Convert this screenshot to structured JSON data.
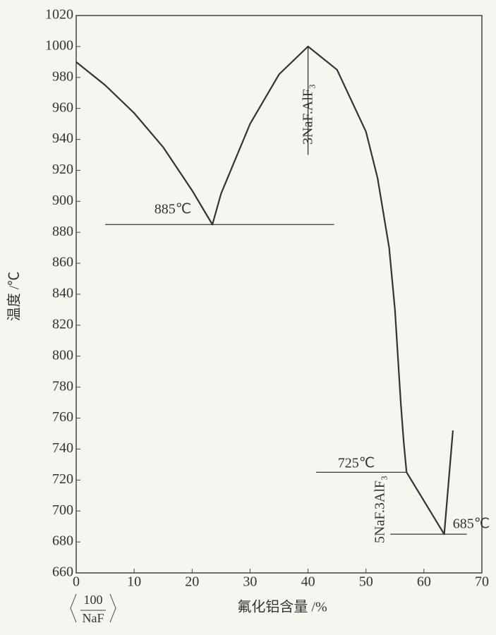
{
  "chart_data": {
    "type": "line",
    "x_label": "氟化铝含量 /%",
    "y_label": "温度 /℃",
    "x": [
      0,
      5,
      10,
      15,
      20,
      23.5,
      25,
      30,
      35,
      40,
      45,
      50,
      52,
      54,
      55,
      55.5,
      56,
      56.5,
      57,
      63.5,
      65
    ],
    "values": [
      990,
      975,
      957,
      935,
      907,
      885,
      905,
      950,
      982,
      1000,
      985,
      945,
      915,
      870,
      830,
      800,
      770,
      745,
      725,
      685,
      752
    ],
    "color": "#333333",
    "segments": [
      {
        "x": [
          5,
          44.5
        ],
        "values": [
          885,
          885
        ]
      },
      {
        "x": [
          40,
          40
        ],
        "values": [
          1000,
          930
        ]
      },
      {
        "x": [
          41.4,
          57
        ],
        "values": [
          725,
          725
        ]
      },
      {
        "x": [
          54.2,
          67.4
        ],
        "values": [
          685,
          685
        ]
      }
    ],
    "annotations": [
      "885℃",
      "3NaF.AlF₃",
      "725℃",
      "5NaF.3AlF₃",
      "685℃"
    ],
    "corner_label": [
      "100",
      "NaF"
    ],
    "xlim": [
      0,
      70
    ],
    "xticks": [
      0,
      10,
      20,
      30,
      40,
      50,
      60,
      70
    ],
    "ylim": [
      660,
      1020
    ],
    "yticks": [
      660,
      680,
      700,
      720,
      740,
      760,
      780,
      800,
      820,
      840,
      860,
      880,
      900,
      920,
      940,
      960,
      980,
      1000,
      1020
    ],
    "grid": false
  }
}
